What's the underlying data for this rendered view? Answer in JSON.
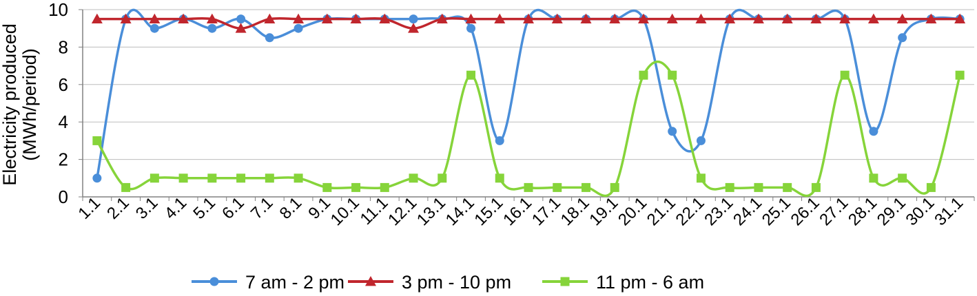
{
  "chart_data": {
    "type": "line",
    "title": "",
    "xlabel": "",
    "ylabel_line1": "Electricity produced",
    "ylabel_line2": "(MWh/period)",
    "ylim": [
      0,
      10
    ],
    "yticks": [
      "0",
      "2",
      "4",
      "6",
      "8",
      "10"
    ],
    "grid": "horizontal",
    "legend_position": "bottom",
    "categories": [
      "1.1",
      "2.1",
      "3.1",
      "4.1",
      "5.1",
      "6.1",
      "7.1",
      "8.1",
      "9.1",
      "10.1",
      "11.1",
      "12.1",
      "13.1",
      "14.1",
      "15.1",
      "16.1",
      "17.1",
      "18.1",
      "19.1",
      "20.1",
      "21.1",
      "22.1",
      "23.1",
      "24.1",
      "25.1",
      "26.1",
      "27.1",
      "28.1",
      "29.1",
      "30.1",
      "31.1"
    ],
    "series": [
      {
        "name": "7 am - 2 pm",
        "color": "#4a8ed9",
        "marker": "circle",
        "values": [
          1,
          9.5,
          9,
          9.5,
          9,
          9.5,
          8.5,
          9,
          9.5,
          9.5,
          9.5,
          9.5,
          9.5,
          9,
          3,
          9.5,
          9.5,
          9.5,
          9.5,
          9.5,
          3.5,
          3,
          9.5,
          9.5,
          9.5,
          9.5,
          9.5,
          3.5,
          8.5,
          9.5,
          9.5
        ]
      },
      {
        "name": "3 pm - 10 pm",
        "color": "#c0262d",
        "marker": "triangle",
        "values": [
          9.5,
          9.5,
          9.5,
          9.5,
          9.5,
          9,
          9.5,
          9.5,
          9.5,
          9.5,
          9.5,
          9,
          9.5,
          9.5,
          9.5,
          9.5,
          9.5,
          9.5,
          9.5,
          9.5,
          9.5,
          9.5,
          9.5,
          9.5,
          9.5,
          9.5,
          9.5,
          9.5,
          9.5,
          9.5,
          9.5
        ]
      },
      {
        "name": "11 pm - 6 am",
        "color": "#86d43a",
        "marker": "square",
        "values": [
          3,
          0.5,
          1,
          1,
          1,
          1,
          1,
          1,
          0.5,
          0.5,
          0.5,
          1,
          1,
          6.5,
          1,
          0.5,
          0.5,
          0.5,
          0.5,
          6.5,
          6.5,
          1,
          0.5,
          0.5,
          0.5,
          0.5,
          6.5,
          1,
          1,
          0.5,
          6.5
        ]
      }
    ]
  }
}
